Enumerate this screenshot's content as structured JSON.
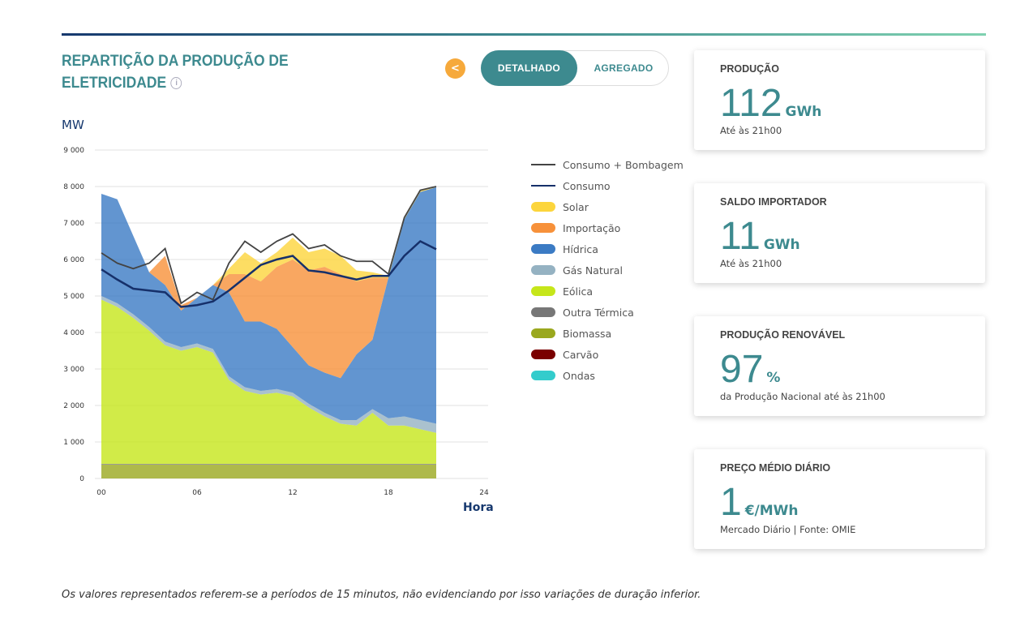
{
  "header": {
    "title": "REPARTIÇÃO DA PRODUÇÃO DE ELETRICIDADE",
    "info_icon": "info-icon",
    "share_icon": "share-icon",
    "toggle": [
      "DETALHADO",
      "AGREGADO"
    ],
    "active_toggle": "DETALHADO"
  },
  "colors": {
    "accent": "#3d8a8f",
    "share": "#f6a93b"
  },
  "chart_data": {
    "type": "area",
    "stacked": true,
    "ylabel": "MW",
    "xlabel": "Hora",
    "xlim": [
      0,
      24
    ],
    "ylim": [
      0,
      9000
    ],
    "grid": true,
    "legend": "right",
    "xticks": [
      "00",
      "06",
      "12",
      "18",
      "24"
    ],
    "yticks": [
      "0",
      "1 000",
      "2 000",
      "3 000",
      "4 000",
      "5 000",
      "6 000",
      "7 000",
      "8 000",
      "9 000"
    ],
    "x": [
      0,
      1,
      2,
      3,
      4,
      5,
      6,
      7,
      8,
      9,
      10,
      11,
      12,
      13,
      14,
      15,
      16,
      17,
      18,
      19,
      20,
      21
    ],
    "series": [
      {
        "name": "Ondas",
        "color": "#33cccc",
        "values": [
          0,
          0,
          0,
          0,
          0,
          0,
          0,
          0,
          0,
          0,
          0,
          0,
          0,
          0,
          0,
          0,
          0,
          0,
          0,
          0,
          0,
          0
        ]
      },
      {
        "name": "Carvão",
        "color": "#7a0000",
        "values": [
          0,
          0,
          0,
          0,
          0,
          0,
          0,
          0,
          0,
          0,
          0,
          0,
          0,
          0,
          0,
          0,
          0,
          0,
          0,
          0,
          0,
          0
        ]
      },
      {
        "name": "Biomassa",
        "color": "#9aa81e",
        "values": [
          380,
          380,
          380,
          380,
          380,
          380,
          380,
          380,
          380,
          380,
          380,
          380,
          380,
          380,
          380,
          380,
          380,
          380,
          380,
          380,
          380,
          380
        ]
      },
      {
        "name": "Outra Térmica",
        "color": "#777777",
        "values": [
          20,
          20,
          20,
          20,
          20,
          20,
          20,
          20,
          20,
          20,
          20,
          20,
          20,
          20,
          20,
          20,
          20,
          20,
          20,
          20,
          20,
          20
        ]
      },
      {
        "name": "Eólica",
        "color": "#c6e61a",
        "values": [
          4500,
          4300,
          4000,
          3650,
          3250,
          3100,
          3200,
          3050,
          2300,
          2000,
          1900,
          1950,
          1850,
          1550,
          1300,
          1100,
          1050,
          1400,
          1050,
          1050,
          950,
          850
        ]
      },
      {
        "name": "Gás Natural",
        "color": "#95b2c2",
        "values": [
          100,
          100,
          100,
          100,
          100,
          100,
          100,
          100,
          100,
          100,
          100,
          100,
          100,
          100,
          100,
          100,
          150,
          100,
          200,
          250,
          250,
          250
        ]
      },
      {
        "name": "Hídrica",
        "color": "#3b7bc4",
        "values": [
          2800,
          2850,
          2150,
          1500,
          1550,
          1000,
          1250,
          1750,
          2300,
          1800,
          1900,
          1650,
          1250,
          1050,
          1100,
          1150,
          1800,
          1900,
          3850,
          5400,
          6250,
          6480
        ]
      },
      {
        "name": "Importação",
        "color": "#f7913a",
        "values": [
          0,
          0,
          0,
          0,
          800,
          150,
          0,
          0,
          500,
          1300,
          1100,
          1700,
          2400,
          2600,
          2900,
          2850,
          2000,
          1700,
          0,
          0,
          0,
          0
        ]
      },
      {
        "name": "Solar",
        "color": "#fcd53c",
        "values": [
          0,
          0,
          0,
          0,
          0,
          0,
          0,
          0,
          150,
          600,
          500,
          400,
          600,
          500,
          500,
          500,
          300,
          150,
          50,
          50,
          50,
          0
        ]
      }
    ],
    "lines": [
      {
        "name": "Consumo + Bombagem",
        "color": "#444444",
        "values": [
          6180,
          5900,
          5750,
          5900,
          6300,
          4800,
          5100,
          4900,
          5900,
          6500,
          6200,
          6500,
          6700,
          6300,
          6400,
          6100,
          5950,
          5950,
          5600,
          7150,
          7900,
          8000
        ]
      },
      {
        "name": "Consumo",
        "color": "#16306a",
        "values": [
          5730,
          5450,
          5200,
          5150,
          5100,
          4700,
          4750,
          4850,
          5150,
          5500,
          5850,
          6000,
          6100,
          5700,
          5650,
          5550,
          5450,
          5550,
          5550,
          6100,
          6500,
          6280
        ]
      }
    ]
  },
  "legend": [
    {
      "label": "Consumo + Bombagem",
      "type": "line",
      "color": "#444444"
    },
    {
      "label": "Consumo",
      "type": "line",
      "color": "#16306a"
    },
    {
      "label": "Solar",
      "type": "area",
      "color": "#fcd53c"
    },
    {
      "label": "Importação",
      "type": "area",
      "color": "#f7913a"
    },
    {
      "label": "Hídrica",
      "type": "area",
      "color": "#3b7bc4"
    },
    {
      "label": "Gás Natural",
      "type": "area",
      "color": "#95b2c2"
    },
    {
      "label": "Eólica",
      "type": "area",
      "color": "#c6e61a"
    },
    {
      "label": "Outra Térmica",
      "type": "area",
      "color": "#777777"
    },
    {
      "label": "Biomassa",
      "type": "area",
      "color": "#9aa81e"
    },
    {
      "label": "Carvão",
      "type": "area",
      "color": "#7a0000"
    },
    {
      "label": "Ondas",
      "type": "area",
      "color": "#33cccc"
    }
  ],
  "cards": [
    {
      "title": "PRODUÇÃO",
      "value": "112",
      "unit": "GWh",
      "sub": "Até às 21h00"
    },
    {
      "title": "SALDO IMPORTADOR",
      "value": "11",
      "unit": "GWh",
      "sub": "Até às 21h00"
    },
    {
      "title": "PRODUÇÃO RENOVÁVEL",
      "value": "97",
      "unit": "%",
      "sub": "da Produção Nacional até às 21h00"
    },
    {
      "title": "PREÇO MÉDIO DIÁRIO",
      "value": "1",
      "unit": "€/MWh",
      "sub": "Mercado Diário | Fonte: OMIE"
    }
  ],
  "footnote": "Os valores representados referem-se a períodos de 15 minutos, não evidenciando por isso variações de duração inferior."
}
